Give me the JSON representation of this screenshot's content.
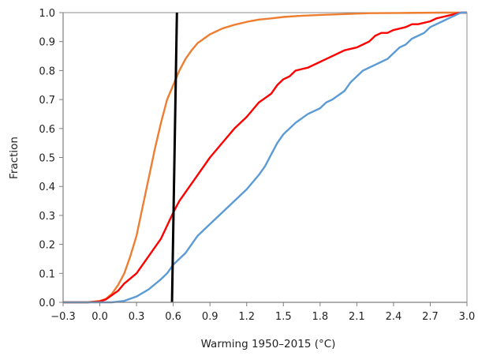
{
  "chart_data": {
    "type": "line",
    "xlabel": "Warming 1950–2015 (°C)",
    "ylabel": "Fraction",
    "xlim": [
      -0.3,
      3.0
    ],
    "ylim": [
      0.0,
      1.0
    ],
    "x_ticks": [
      "−0.3",
      "0.0",
      "0.3",
      "0.6",
      "0.9",
      "1.2",
      "1.5",
      "1.8",
      "2.1",
      "2.4",
      "2.7",
      "3.0"
    ],
    "x_tick_values": [
      -0.3,
      0.0,
      0.3,
      0.6,
      0.9,
      1.2,
      1.5,
      1.8,
      2.1,
      2.4,
      2.7,
      3.0
    ],
    "y_ticks": [
      "0.0",
      "0.1",
      "0.2",
      "0.3",
      "0.4",
      "0.5",
      "0.6",
      "0.7",
      "0.8",
      "0.9",
      "1.0"
    ],
    "y_tick_values": [
      0.0,
      0.1,
      0.2,
      0.3,
      0.4,
      0.5,
      0.6,
      0.7,
      0.8,
      0.9,
      1.0
    ],
    "grid": false,
    "legend": "none",
    "series": [
      {
        "color": "#ED7D31",
        "points": [
          [
            -0.3,
            0.0
          ],
          [
            -0.1,
            0.0
          ],
          [
            0.0,
            0.005
          ],
          [
            0.05,
            0.012
          ],
          [
            0.1,
            0.03
          ],
          [
            0.15,
            0.06
          ],
          [
            0.2,
            0.1
          ],
          [
            0.25,
            0.16
          ],
          [
            0.3,
            0.23
          ],
          [
            0.35,
            0.33
          ],
          [
            0.4,
            0.43
          ],
          [
            0.45,
            0.53
          ],
          [
            0.5,
            0.62
          ],
          [
            0.55,
            0.7
          ],
          [
            0.6,
            0.75
          ],
          [
            0.65,
            0.8
          ],
          [
            0.7,
            0.84
          ],
          [
            0.75,
            0.87
          ],
          [
            0.8,
            0.895
          ],
          [
            0.85,
            0.91
          ],
          [
            0.9,
            0.925
          ],
          [
            1.0,
            0.945
          ],
          [
            1.1,
            0.958
          ],
          [
            1.2,
            0.968
          ],
          [
            1.3,
            0.976
          ],
          [
            1.4,
            0.98
          ],
          [
            1.5,
            0.985
          ],
          [
            1.6,
            0.988
          ],
          [
            1.8,
            0.992
          ],
          [
            2.0,
            0.995
          ],
          [
            2.2,
            0.998
          ],
          [
            2.5,
            0.999
          ],
          [
            2.8,
            1.0
          ],
          [
            3.0,
            1.0
          ]
        ]
      },
      {
        "color": "#FF0000",
        "points": [
          [
            -0.3,
            0.0
          ],
          [
            -0.1,
            0.0
          ],
          [
            0.0,
            0.003
          ],
          [
            0.05,
            0.01
          ],
          [
            0.1,
            0.025
          ],
          [
            0.15,
            0.04
          ],
          [
            0.2,
            0.065
          ],
          [
            0.3,
            0.1
          ],
          [
            0.4,
            0.16
          ],
          [
            0.5,
            0.22
          ],
          [
            0.6,
            0.31
          ],
          [
            0.65,
            0.35
          ],
          [
            0.7,
            0.38
          ],
          [
            0.8,
            0.44
          ],
          [
            0.9,
            0.5
          ],
          [
            1.0,
            0.55
          ],
          [
            1.1,
            0.6
          ],
          [
            1.2,
            0.64
          ],
          [
            1.3,
            0.69
          ],
          [
            1.4,
            0.72
          ],
          [
            1.45,
            0.75
          ],
          [
            1.5,
            0.77
          ],
          [
            1.55,
            0.78
          ],
          [
            1.6,
            0.8
          ],
          [
            1.7,
            0.81
          ],
          [
            1.8,
            0.83
          ],
          [
            1.85,
            0.84
          ],
          [
            1.9,
            0.85
          ],
          [
            1.95,
            0.86
          ],
          [
            2.0,
            0.87
          ],
          [
            2.1,
            0.88
          ],
          [
            2.15,
            0.89
          ],
          [
            2.2,
            0.9
          ],
          [
            2.25,
            0.92
          ],
          [
            2.3,
            0.93
          ],
          [
            2.35,
            0.93
          ],
          [
            2.4,
            0.94
          ],
          [
            2.5,
            0.95
          ],
          [
            2.55,
            0.96
          ],
          [
            2.6,
            0.96
          ],
          [
            2.7,
            0.97
          ],
          [
            2.75,
            0.98
          ],
          [
            2.8,
            0.985
          ],
          [
            2.85,
            0.99
          ],
          [
            2.9,
            0.995
          ],
          [
            2.95,
            1.0
          ],
          [
            3.0,
            1.0
          ]
        ]
      },
      {
        "color": "#5B9BD5",
        "points": [
          [
            -0.3,
            0.0
          ],
          [
            0.1,
            0.0
          ],
          [
            0.2,
            0.005
          ],
          [
            0.3,
            0.02
          ],
          [
            0.4,
            0.045
          ],
          [
            0.5,
            0.08
          ],
          [
            0.55,
            0.1
          ],
          [
            0.6,
            0.13
          ],
          [
            0.7,
            0.17
          ],
          [
            0.8,
            0.23
          ],
          [
            0.9,
            0.27
          ],
          [
            1.0,
            0.31
          ],
          [
            1.1,
            0.35
          ],
          [
            1.2,
            0.39
          ],
          [
            1.3,
            0.44
          ],
          [
            1.35,
            0.47
          ],
          [
            1.4,
            0.51
          ],
          [
            1.45,
            0.55
          ],
          [
            1.5,
            0.58
          ],
          [
            1.6,
            0.62
          ],
          [
            1.7,
            0.65
          ],
          [
            1.8,
            0.67
          ],
          [
            1.85,
            0.69
          ],
          [
            1.9,
            0.7
          ],
          [
            2.0,
            0.73
          ],
          [
            2.05,
            0.76
          ],
          [
            2.1,
            0.78
          ],
          [
            2.15,
            0.8
          ],
          [
            2.2,
            0.81
          ],
          [
            2.25,
            0.82
          ],
          [
            2.3,
            0.83
          ],
          [
            2.35,
            0.84
          ],
          [
            2.4,
            0.86
          ],
          [
            2.45,
            0.88
          ],
          [
            2.5,
            0.89
          ],
          [
            2.55,
            0.91
          ],
          [
            2.6,
            0.92
          ],
          [
            2.65,
            0.93
          ],
          [
            2.7,
            0.95
          ],
          [
            2.75,
            0.96
          ],
          [
            2.8,
            0.97
          ],
          [
            2.85,
            0.98
          ],
          [
            2.9,
            0.99
          ],
          [
            2.95,
            1.0
          ],
          [
            3.0,
            1.0
          ]
        ]
      },
      {
        "color": "#000000",
        "points": [
          [
            0.59,
            0.0
          ],
          [
            0.63,
            1.0
          ]
        ]
      }
    ]
  }
}
